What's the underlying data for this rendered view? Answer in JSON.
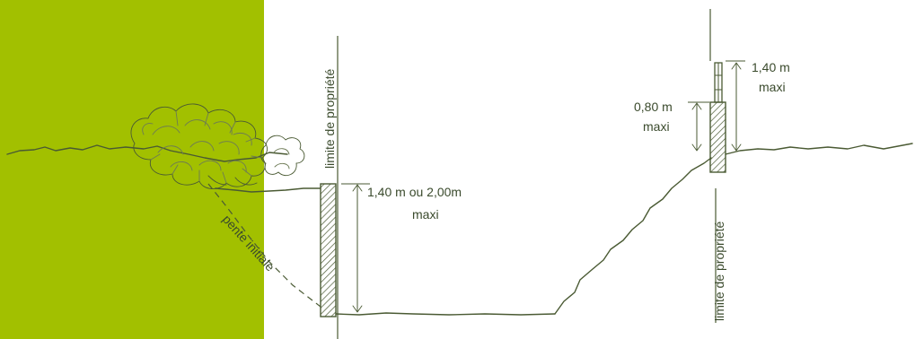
{
  "colors": {
    "panel": "#a2c000",
    "ink": "#4a5a33",
    "text": "#3a4a2c"
  },
  "labels": {
    "left_property_limit": "limite de propriété",
    "right_property_limit": "limite de propriété",
    "slope_label": "pente initiale",
    "left_wall_height": "1,40 m ou 2,00m",
    "left_wall_maxi": "maxi",
    "right_wall_height": "0,80 m",
    "right_wall_maxi": "maxi",
    "right_fence_height": "1,40 m",
    "right_fence_maxi": "maxi"
  }
}
